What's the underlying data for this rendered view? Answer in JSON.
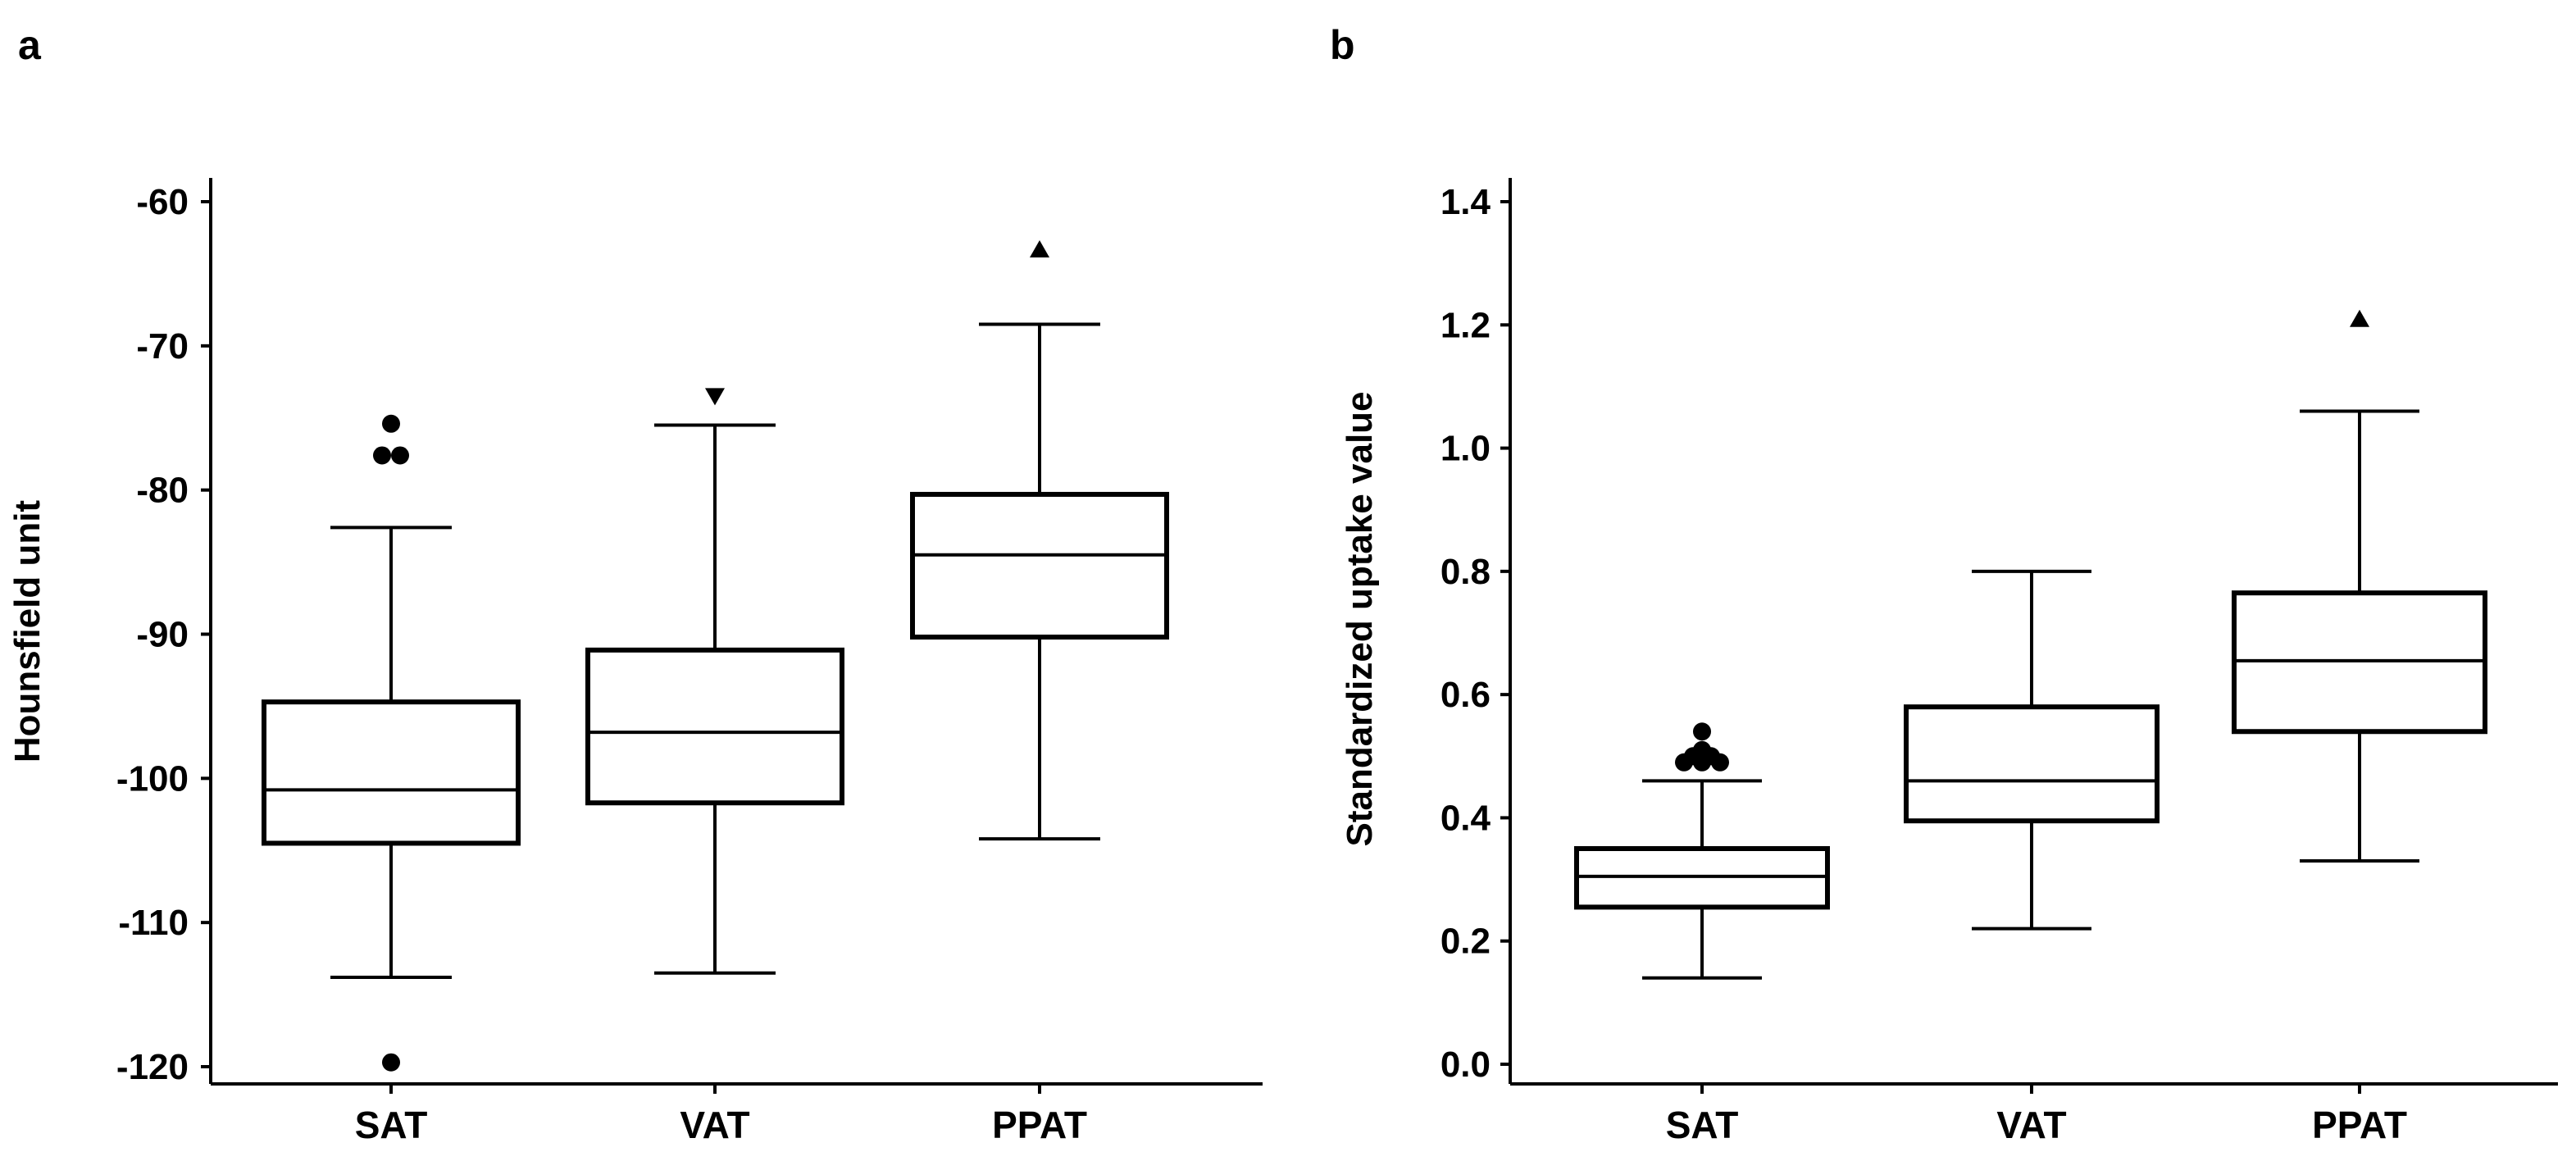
{
  "chart_data": [
    {
      "panel_label": "a",
      "type": "box",
      "title": "",
      "xlabel": "",
      "ylabel": "Hounsfield unit",
      "ylim": [
        -121.5,
        -58.5
      ],
      "yticks": [
        -60,
        -70,
        -80,
        -90,
        -100,
        -110,
        -120
      ],
      "categories": [
        "SAT",
        "VAT",
        "PPAT"
      ],
      "boxes": [
        {
          "category": "SAT",
          "whisker_low": -113.8,
          "q1": -104.5,
          "median": -100.8,
          "q3": -94.7,
          "whisker_high": -82.6,
          "outliers": [
            {
              "y": -75.4,
              "marker": "circle"
            },
            {
              "y": -77.6,
              "marker": "circle"
            },
            {
              "y": -77.6,
              "marker": "circle"
            },
            {
              "y": -119.7,
              "marker": "circle"
            }
          ]
        },
        {
          "category": "VAT",
          "whisker_low": -113.5,
          "q1": -101.7,
          "median": -96.8,
          "q3": -91.1,
          "whisker_high": -75.5,
          "outliers": [
            {
              "y": -73.5,
              "marker": "triangle-down"
            }
          ]
        },
        {
          "category": "PPAT",
          "whisker_low": -104.2,
          "q1": -90.2,
          "median": -84.5,
          "q3": -80.3,
          "whisker_high": -68.5,
          "outliers": [
            {
              "y": -63.3,
              "marker": "triangle-up"
            }
          ]
        }
      ]
    },
    {
      "panel_label": "b",
      "type": "box",
      "title": "",
      "xlabel": "",
      "ylabel": "Standardized uptake value",
      "ylim": [
        -0.03,
        1.43
      ],
      "yticks": [
        "0.0",
        "0.2",
        "0.4",
        "0.6",
        "0.8",
        "1.0",
        "1.2",
        "1.4"
      ],
      "categories": [
        "SAT",
        "VAT",
        "PPAT"
      ],
      "boxes": [
        {
          "category": "SAT",
          "whisker_low": 0.14,
          "q1": 0.255,
          "median": 0.305,
          "q3": 0.35,
          "whisker_high": 0.46,
          "outliers": [
            {
              "y": 0.49,
              "marker": "circle"
            },
            {
              "y": 0.49,
              "marker": "circle"
            },
            {
              "y": 0.49,
              "marker": "circle"
            },
            {
              "y": 0.5,
              "marker": "circle"
            },
            {
              "y": 0.5,
              "marker": "circle"
            },
            {
              "y": 0.51,
              "marker": "circle"
            },
            {
              "y": 0.54,
              "marker": "circle"
            }
          ]
        },
        {
          "category": "VAT",
          "whisker_low": 0.22,
          "q1": 0.395,
          "median": 0.46,
          "q3": 0.58,
          "whisker_high": 0.8,
          "outliers": []
        },
        {
          "category": "PPAT",
          "whisker_low": 0.33,
          "q1": 0.54,
          "median": 0.655,
          "q3": 0.765,
          "whisker_high": 1.06,
          "outliers": [
            {
              "y": 1.21,
              "marker": "triangle-up"
            }
          ]
        }
      ]
    }
  ]
}
